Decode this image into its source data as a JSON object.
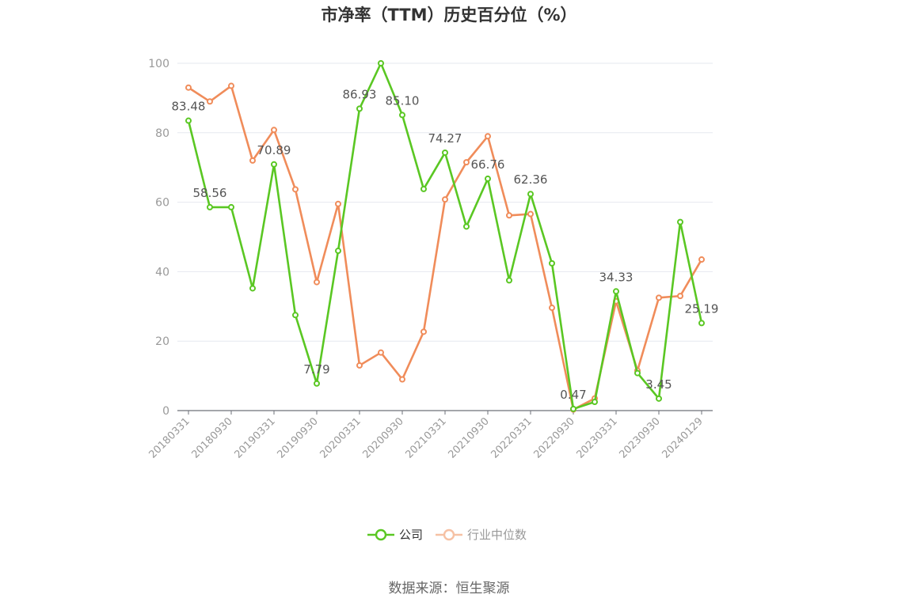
{
  "title": "市净率（TTM）历史百分位（%）",
  "source": "数据来源：恒生聚源",
  "chart_data": {
    "type": "line",
    "ylim": [
      0,
      100
    ],
    "y_ticks": [
      0,
      20,
      40,
      60,
      80,
      100
    ],
    "x_tick_labels": [
      "20180331",
      "20180930",
      "20190331",
      "20190930",
      "20200331",
      "20200930",
      "20210331",
      "20210930",
      "20220331",
      "20220930",
      "20230331",
      "20230930",
      "20240129"
    ],
    "grid": true,
    "legend_position": "bottom-center",
    "series": [
      {
        "name": "公司",
        "color": "#5ac723",
        "values": [
          83.48,
          58.56,
          58.56,
          35.2,
          70.89,
          27.5,
          7.79,
          46.0,
          86.93,
          100.0,
          85.1,
          63.8,
          74.27,
          53.0,
          66.76,
          37.5,
          62.36,
          42.4,
          0.47,
          2.5,
          34.33,
          10.8,
          3.45,
          54.3,
          25.19
        ],
        "labels": [
          "83.48",
          "58.56",
          "",
          "",
          "70.89",
          "",
          "7.79",
          "",
          "86.93",
          "",
          "85.10",
          "",
          "74.27",
          "",
          "66.76",
          "",
          "62.36",
          "",
          "0.47",
          "",
          "34.33",
          "",
          "3.45",
          "",
          "25.19"
        ]
      },
      {
        "name": "行业中位数",
        "color": "#f08c5a",
        "values": [
          93.0,
          89.0,
          93.5,
          72.0,
          80.8,
          63.7,
          37.0,
          59.5,
          13.0,
          16.7,
          9.0,
          22.7,
          60.8,
          71.5,
          79.0,
          56.2,
          56.6,
          29.6,
          0.3,
          3.5,
          31.5,
          11.5,
          32.5,
          33.0,
          43.5
        ]
      }
    ]
  }
}
